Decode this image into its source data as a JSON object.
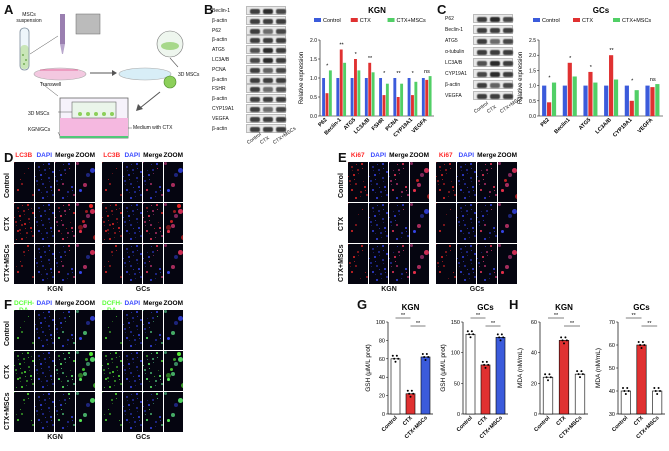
{
  "panels": {
    "A": "A",
    "B": "B",
    "C": "C",
    "D": "D",
    "E": "E",
    "F": "F",
    "G": "G",
    "H": "H"
  },
  "schematic": {
    "mscs_suspension": "MSCs suspension",
    "transwell": "Transwell",
    "mscs_3d": "3D MSCs",
    "mscs_3d_insert": "3D MSCs",
    "kgn_gcs": "KGN/GCs",
    "medium": "Medium with CTX"
  },
  "blot_B": {
    "labels": [
      "Beclin-1",
      "β-actin",
      "P62",
      "β-actin",
      "ATG5",
      "LC3A/B",
      "PCNA",
      "β-actin",
      "FSHR",
      "β-actin",
      "CYP19A1",
      "VEGFA",
      "β-actin"
    ],
    "lanes": [
      "Control",
      "CTX",
      "CTX+MSCs"
    ]
  },
  "blot_C": {
    "labels": [
      "P62",
      "Beclin-1",
      "ATG5",
      "α-tubulin",
      "LC3A/B",
      "CYP19A1",
      "β-actin",
      "VEGFA"
    ],
    "lanes": [
      "Control",
      "CTX",
      "CTX+MSCs"
    ]
  },
  "chart_data": [
    {
      "type": "bar",
      "title": "KGN",
      "ylabel": "Relative expression",
      "ylim": [
        0,
        2.0
      ],
      "yticks": [
        "0.0",
        "0.5",
        "1.0",
        "1.5",
        "2.0"
      ],
      "categories": [
        "P62",
        "Beclin-1",
        "ATG5",
        "LC3A/B",
        "FSHR",
        "PCNA",
        "CYP19A1",
        "VEGFA"
      ],
      "series": [
        {
          "name": "Control",
          "values": [
            1.0,
            1.0,
            1.0,
            1.0,
            1.0,
            1.0,
            1.0,
            1.0
          ]
        },
        {
          "name": "CTX",
          "values": [
            0.6,
            1.75,
            1.5,
            1.4,
            0.55,
            0.5,
            0.55,
            0.95
          ]
        },
        {
          "name": "CTX+MSCs",
          "values": [
            1.2,
            1.4,
            1.2,
            1.15,
            0.85,
            0.85,
            0.9,
            1.05
          ]
        }
      ],
      "annotations": [
        "*",
        "**",
        "*",
        "**",
        "*",
        "**",
        "*",
        "ns"
      ],
      "legend": "top"
    },
    {
      "type": "bar",
      "title": "GCs",
      "ylabel": "Relative expression",
      "ylim": [
        0,
        2.5
      ],
      "yticks": [
        "0.0",
        "0.5",
        "1.0",
        "1.5",
        "2.0",
        "2.5"
      ],
      "categories": [
        "P62",
        "Beclin1",
        "ATG5",
        "LC3A/B",
        "CYP19A1",
        "VEGFA"
      ],
      "series": [
        {
          "name": "Control",
          "values": [
            1.0,
            1.0,
            1.0,
            1.0,
            1.0,
            1.0
          ]
        },
        {
          "name": "CTX",
          "values": [
            0.45,
            1.75,
            1.45,
            2.0,
            0.5,
            0.95
          ]
        },
        {
          "name": "CTX+MSCs",
          "values": [
            1.1,
            1.3,
            1.1,
            1.2,
            0.85,
            1.05
          ]
        }
      ],
      "annotations": [
        "*",
        "*",
        "*",
        "**",
        "*",
        "ns"
      ],
      "legend": "top"
    },
    {
      "type": "bar",
      "title": "KGN",
      "ylabel": "GSH (μM/L prot)",
      "ylim": [
        0,
        100
      ],
      "yticks": [
        "0",
        "20",
        "40",
        "60",
        "80",
        "100"
      ],
      "categories": [
        "Control",
        "CTX",
        "CTX+MSCs"
      ],
      "series": [
        {
          "name": "",
          "values": [
            60,
            22,
            62
          ]
        }
      ],
      "annotations": [
        "**",
        "**"
      ]
    },
    {
      "type": "bar",
      "title": "GCs",
      "ylabel": "GSH (μM/L prot)",
      "ylim": [
        0,
        150
      ],
      "yticks": [
        "0",
        "50",
        "100",
        "150"
      ],
      "categories": [
        "Control",
        "CTX",
        "CTX+MSCs"
      ],
      "series": [
        {
          "name": "",
          "values": [
            130,
            80,
            125
          ]
        }
      ],
      "annotations": [
        "**",
        "**"
      ]
    },
    {
      "type": "bar",
      "title": "KGN",
      "ylabel": "MDA (nM/mL)",
      "ylim": [
        0,
        60
      ],
      "yticks": [
        "0",
        "20",
        "40",
        "60"
      ],
      "categories": [
        "Control",
        "CTX",
        "CTX+MSCs"
      ],
      "series": [
        {
          "name": "",
          "values": [
            24,
            48,
            26
          ]
        }
      ],
      "annotations": [
        "**",
        "**"
      ]
    },
    {
      "type": "bar",
      "title": "GCs",
      "ylabel": "MDA (nM/mL)",
      "ylim": [
        30,
        70
      ],
      "yticks": [
        "30",
        "40",
        "50",
        "60",
        "70"
      ],
      "categories": [
        "Control",
        "CTX",
        "CTX+MSCs"
      ],
      "series": [
        {
          "name": "",
          "values": [
            40,
            60,
            40
          ]
        }
      ],
      "annotations": [
        "**",
        "**"
      ]
    }
  ],
  "legend_labels": [
    "Control",
    "CTX",
    "CTX+MSCs"
  ],
  "colors": {
    "control": "#3b5bdb",
    "ctx": "#e03131",
    "msc": "#51cf66",
    "red_stain": "#ff2a2a",
    "blue_stain": "#3b4bff",
    "green_stain": "#5cff3a"
  },
  "micro_D": {
    "left_heads": [
      "LC3B",
      "DAPI",
      "Merge",
      "ZOOM"
    ],
    "right_heads": [
      "LC3B",
      "DAPI",
      "Merge",
      "ZOOM"
    ],
    "rows": [
      "Control",
      "CTX",
      "CTX+MSCs"
    ],
    "left_caption": "KGN",
    "right_caption": "GCs"
  },
  "micro_E": {
    "left_heads": [
      "Ki67",
      "DAPI",
      "Merge",
      "ZOOM"
    ],
    "right_heads": [
      "Ki67",
      "DAPI",
      "Merge",
      "ZOOM"
    ],
    "rows": [
      "Control",
      "CTX",
      "CTX+MSCs"
    ],
    "left_caption": "KGN",
    "right_caption": "GCs"
  },
  "micro_F": {
    "left_heads": [
      "DCFH-DA",
      "DAPI",
      "Merge",
      "ZOOM"
    ],
    "right_heads": [
      "DCFH-DA",
      "DAPI",
      "Merge",
      "ZOOM"
    ],
    "rows": [
      "Control",
      "CTX",
      "CTX+MSCs"
    ],
    "left_caption": "KGN",
    "right_caption": "GCs"
  }
}
